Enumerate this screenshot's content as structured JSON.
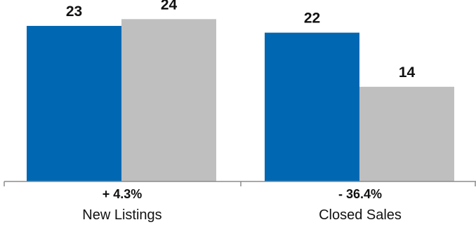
{
  "chart_data": {
    "type": "bar",
    "categories": [
      "New Listings",
      "Closed Sales"
    ],
    "change_labels": [
      "+ 4.3%",
      "- 36.4%"
    ],
    "series": [
      {
        "color": "#0068b3",
        "values": [
          23,
          22
        ]
      },
      {
        "color": "#bfbfbf",
        "values": [
          24,
          14
        ]
      }
    ],
    "ylim": [
      0,
      26
    ],
    "grid": false,
    "legend": "none"
  }
}
